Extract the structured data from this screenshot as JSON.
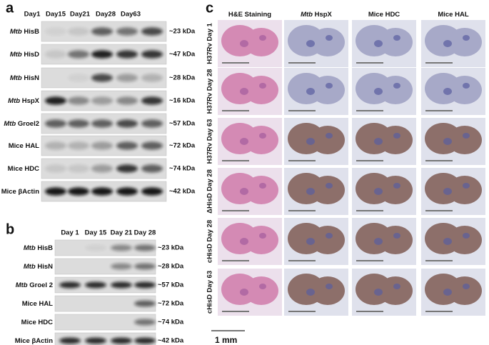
{
  "panel_a": {
    "label": "a",
    "days": [
      "Day1",
      "Day15",
      "Day21",
      "Day28",
      "Day63"
    ],
    "rows": [
      {
        "species": "Mtb",
        "protein": "HisB",
        "size": "~23 kDa"
      },
      {
        "species": "Mtb",
        "protein": "HisD",
        "size": "~47 kDa"
      },
      {
        "species": "Mtb",
        "protein": "HisN",
        "size": "~28 kDa"
      },
      {
        "species": "Mtb",
        "protein": "HspX",
        "size": "~16 kDa"
      },
      {
        "species": "Mtb",
        "protein": "Groel2",
        "size": "~57 kDa"
      },
      {
        "protein": "Mice HAL",
        "size": "~72 kDa"
      },
      {
        "protein": "Mice HDC",
        "size": "~74 kDa"
      },
      {
        "protein": "Mice βActin",
        "size": "~42 kDa"
      }
    ]
  },
  "panel_b": {
    "label": "b",
    "days": [
      "Day 1",
      "Day 15",
      "Day 21",
      "Day 28"
    ],
    "rows": [
      {
        "species": "Mtb",
        "protein": "HisB",
        "size": "~23 kDa"
      },
      {
        "species": "Mtb",
        "protein": "HisN",
        "size": "~28 kDa"
      },
      {
        "species": "Mtb",
        "protein": "Groel 2",
        "size": "~57 kDa"
      },
      {
        "protein": "Mice HAL",
        "size": "~72 kDa"
      },
      {
        "protein": "Mice HDC",
        "size": "~74 kDa"
      },
      {
        "protein": "Mice βActin",
        "size": "~42 kDa"
      }
    ]
  },
  "panel_c": {
    "label": "c",
    "columns": [
      {
        "protein": "H&E Staining"
      },
      {
        "species": "Mtb",
        "protein": "HspX"
      },
      {
        "protein": "Mice HDC"
      },
      {
        "protein": "Mice HAL"
      }
    ],
    "rows": [
      "H37Rv Day 1",
      "H37Rv Day 28",
      "H37Rv Day 63",
      "ΔHisD Day 28",
      "cHisD Day 28",
      "cHisD Day 63"
    ],
    "scale": "1 mm"
  }
}
